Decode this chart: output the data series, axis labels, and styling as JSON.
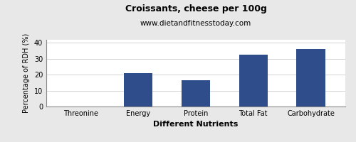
{
  "title": "Croissants, cheese per 100g",
  "subtitle": "www.dietandfitnesstoday.com",
  "xlabel": "Different Nutrients",
  "ylabel": "Percentage of RDH (%)",
  "categories": [
    "Threonine",
    "Energy",
    "Protein",
    "Total Fat",
    "Carbohydrate"
  ],
  "values": [
    0,
    21,
    16.5,
    32.5,
    36
  ],
  "bar_color": "#2e4d8a",
  "ylim": [
    0,
    42
  ],
  "yticks": [
    0,
    10,
    20,
    30,
    40
  ],
  "background_color": "#e8e8e8",
  "plot_bg_color": "#ffffff",
  "title_fontsize": 9,
  "subtitle_fontsize": 7.5,
  "xlabel_fontsize": 8,
  "ylabel_fontsize": 7,
  "tick_fontsize": 7
}
